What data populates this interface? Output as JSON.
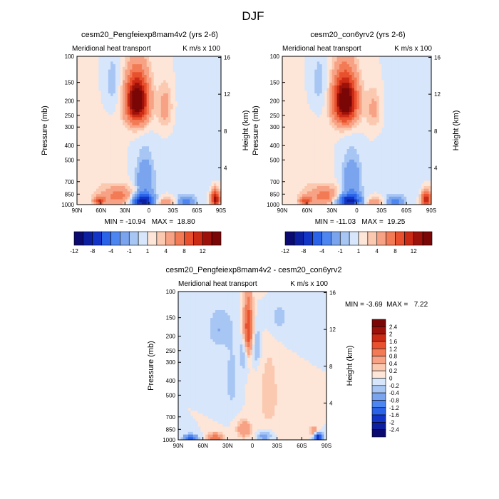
{
  "figure_title": "DJF",
  "chart_data": [
    {
      "type": "heatmap",
      "title": "cesm20_Pengfeiexp8mam4v2 (yrs 2-6)",
      "subtitle_left": "Meridional heat transport",
      "subtitle_right": "K m/s x 100",
      "ylabel": "Pressure (mb)",
      "ylabel_right": "Height (km)",
      "x_ticks": [
        "90N",
        "60N",
        "30N",
        "0",
        "30S",
        "60S",
        "90S"
      ],
      "y_ticks": [
        "100",
        "150",
        "200",
        "250",
        "300",
        "400",
        "500",
        "700",
        "850",
        "1000"
      ],
      "y_right_ticks": [
        "16",
        "12",
        "8",
        "4"
      ],
      "stats_text": "MIN = -10.94   MAX =  18.80",
      "min": -10.94,
      "max": 18.8,
      "colorbar_labels": [
        "-12",
        "-8",
        "-4",
        "-1",
        "1",
        "4",
        "8",
        "12"
      ],
      "features": [
        {
          "lat": 15,
          "p": 200,
          "value": 15.0,
          "wlat": 10,
          "wp": 55
        },
        {
          "lat": -20,
          "p": 220,
          "value": 3.0,
          "wlat": 6,
          "wp": 50
        },
        {
          "lat": 45,
          "p": 150,
          "value": -1.5,
          "wlat": 8,
          "wp": 50
        },
        {
          "lat": 8,
          "p": 950,
          "value": -10.5,
          "wlat": 10,
          "wp": 70
        },
        {
          "lat": 5,
          "p": 700,
          "value": -4.0,
          "wlat": 8,
          "wp": 180
        },
        {
          "lat": -45,
          "p": 960,
          "value": -5.0,
          "wlat": 8,
          "wp": 60
        },
        {
          "lat": 38,
          "p": 880,
          "value": 5.0,
          "wlat": 14,
          "wp": 90
        },
        {
          "lat": 62,
          "p": 950,
          "value": 7.0,
          "wlat": 5,
          "wp": 50
        },
        {
          "lat": -22,
          "p": 960,
          "value": 3.5,
          "wlat": 9,
          "wp": 50
        },
        {
          "lat": -83,
          "p": 920,
          "value": 11.0,
          "wlat": 4,
          "wp": 90
        },
        {
          "lat": -60,
          "p": 550,
          "value": -0.8,
          "wlat": 18,
          "wp": 300
        },
        {
          "lat": 70,
          "p": 600,
          "value": 0.8,
          "wlat": 18,
          "wp": 250
        }
      ]
    },
    {
      "type": "heatmap",
      "title": "cesm20_con6yrv2 (yrs 2-6)",
      "subtitle_left": "Meridional heat transport",
      "subtitle_right": "K m/s x 100",
      "ylabel": "Pressure (mb)",
      "ylabel_right": "Height (km)",
      "x_ticks": [
        "90N",
        "60N",
        "30N",
        "0",
        "30S",
        "60S",
        "90S"
      ],
      "y_ticks": [
        "100",
        "150",
        "200",
        "250",
        "300",
        "400",
        "500",
        "700",
        "850",
        "1000"
      ],
      "y_right_ticks": [
        "16",
        "12",
        "8",
        "4"
      ],
      "stats_text": "MIN = -11.03   MAX =  19.25",
      "min": -11.03,
      "max": 19.25,
      "colorbar_labels": [
        "-12",
        "-8",
        "-4",
        "-1",
        "1",
        "4",
        "8",
        "12"
      ],
      "features": [
        {
          "lat": 14,
          "p": 200,
          "value": 15.5,
          "wlat": 10,
          "wp": 55
        },
        {
          "lat": -20,
          "p": 230,
          "value": 2.5,
          "wlat": 6,
          "wp": 50
        },
        {
          "lat": 45,
          "p": 150,
          "value": -1.5,
          "wlat": 8,
          "wp": 50
        },
        {
          "lat": 10,
          "p": 950,
          "value": -10.0,
          "wlat": 11,
          "wp": 75
        },
        {
          "lat": 6,
          "p": 700,
          "value": -4.0,
          "wlat": 8,
          "wp": 180
        },
        {
          "lat": -45,
          "p": 960,
          "value": -5.0,
          "wlat": 8,
          "wp": 60
        },
        {
          "lat": 38,
          "p": 880,
          "value": 5.0,
          "wlat": 14,
          "wp": 90
        },
        {
          "lat": 62,
          "p": 950,
          "value": 6.5,
          "wlat": 5,
          "wp": 50
        },
        {
          "lat": -22,
          "p": 960,
          "value": 3.5,
          "wlat": 9,
          "wp": 50
        },
        {
          "lat": -84,
          "p": 920,
          "value": 10.0,
          "wlat": 4,
          "wp": 90
        },
        {
          "lat": -60,
          "p": 550,
          "value": -0.8,
          "wlat": 18,
          "wp": 300
        },
        {
          "lat": 70,
          "p": 600,
          "value": 0.8,
          "wlat": 18,
          "wp": 250
        }
      ]
    },
    {
      "type": "heatmap",
      "title": "cesm20_Pengfeiexp8mam4v2 - cesm20_con6yrv2",
      "subtitle_left": "Meridional heat transport",
      "subtitle_right": "K m/s x 100",
      "ylabel": "Pressure (mb)",
      "ylabel_right": "Height (km)",
      "x_ticks": [
        "90N",
        "60N",
        "30N",
        "0",
        "30S",
        "60S",
        "90S"
      ],
      "y_ticks": [
        "100",
        "150",
        "200",
        "250",
        "300",
        "400",
        "500",
        "700",
        "850",
        "1000"
      ],
      "y_right_ticks": [
        "16",
        "12",
        "8",
        "4"
      ],
      "stats_text": "MIN = -3.69  MAX =   7.22",
      "min": -3.69,
      "max": 7.22,
      "colorbar_labels": [
        "2.4",
        "2",
        "1.6",
        "1.2",
        "0.8",
        "0.4",
        "0.2",
        "0",
        "-0.2",
        "-0.4",
        "-0.8",
        "-1.2",
        "-1.6",
        "-2",
        "-2.4"
      ],
      "features": [
        {
          "lat": 5,
          "p": 180,
          "value": 1.6,
          "wlat": 4,
          "wp": 60
        },
        {
          "lat": 10,
          "p": 260,
          "value": -0.5,
          "wlat": 4,
          "wp": 50
        },
        {
          "lat": -5,
          "p": 240,
          "value": -0.5,
          "wlat": 4,
          "wp": 50
        },
        {
          "lat": 40,
          "p": 180,
          "value": -0.4,
          "wlat": 10,
          "wp": 40
        },
        {
          "lat": -30,
          "p": 150,
          "value": -0.3,
          "wlat": 12,
          "wp": 40
        },
        {
          "lat": 25,
          "p": 400,
          "value": -0.3,
          "wlat": 6,
          "wp": 150
        },
        {
          "lat": -20,
          "p": 500,
          "value": 0.3,
          "wlat": 10,
          "wp": 250
        },
        {
          "lat": 75,
          "p": 980,
          "value": -1.5,
          "wlat": 6,
          "wp": 40
        },
        {
          "lat": 45,
          "p": 970,
          "value": 1.2,
          "wlat": 6,
          "wp": 50
        },
        {
          "lat": 10,
          "p": 850,
          "value": 0.8,
          "wlat": 6,
          "wp": 80
        },
        {
          "lat": -15,
          "p": 950,
          "value": -0.6,
          "wlat": 6,
          "wp": 60
        },
        {
          "lat": -80,
          "p": 960,
          "value": -2.0,
          "wlat": 4,
          "wp": 50
        },
        {
          "lat": -75,
          "p": 880,
          "value": 0.8,
          "wlat": 4,
          "wp": 50
        }
      ]
    }
  ],
  "colors": {
    "topbar": [
      "#0a0a70",
      "#0b1fa0",
      "#1235c8",
      "#2a62e8",
      "#4d86f0",
      "#7aa4ee",
      "#a8c6f4",
      "#d7e6fa",
      "#fde5d8",
      "#fbc9b0",
      "#f7a285",
      "#f27b55",
      "#e8502e",
      "#cb2a14",
      "#9c120a",
      "#7a0606"
    ],
    "diffbar_top_to_bottom": [
      "#7a0606",
      "#9c120a",
      "#cb2a14",
      "#e8502e",
      "#f27b55",
      "#f7a285",
      "#fbc9b0",
      "#fde5d8",
      "#d7e6fa",
      "#a8c6f4",
      "#7aa4ee",
      "#4d86f0",
      "#2a62e8",
      "#1235c8",
      "#0b1fa0",
      "#0a0a70"
    ]
  }
}
